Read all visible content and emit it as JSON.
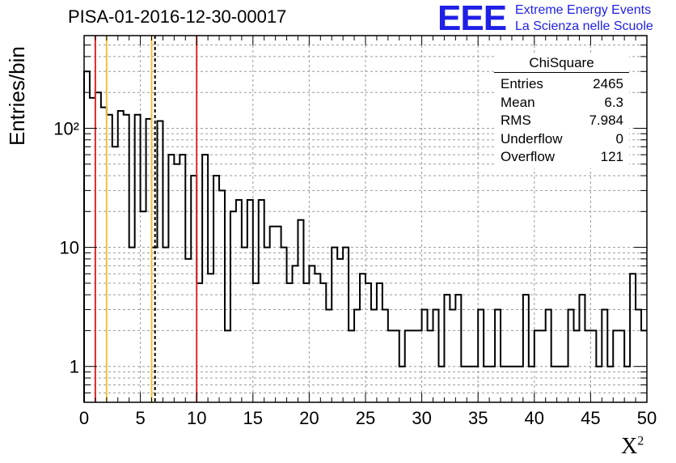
{
  "title": "PISA-01-2016-12-30-00017",
  "logo": {
    "mark": "EEE",
    "line1": "Extreme Energy Events",
    "line2": "La Scienza nelle Scuole",
    "color": "#1f1fe6"
  },
  "stats": {
    "title": "ChiSquare",
    "rows": [
      {
        "key": "Entries",
        "value": "2465"
      },
      {
        "key": "Mean",
        "value": "6.3"
      },
      {
        "key": "RMS",
        "value": "7.984"
      },
      {
        "key": "Underflow",
        "value": "0"
      },
      {
        "key": "Overflow",
        "value": "121"
      }
    ]
  },
  "chart_data": {
    "type": "histogram",
    "ylabel": "Entries/bin",
    "xlabel": "X",
    "xlabel_superscript": "2",
    "xlim": [
      0,
      50
    ],
    "ylim": [
      0.5,
      600
    ],
    "yscale": "log",
    "grid": true,
    "bin_width": 0.5,
    "x_ticks": [
      0,
      5,
      10,
      15,
      20,
      25,
      30,
      35,
      40,
      45,
      50
    ],
    "y_ticks": [
      {
        "value": 1,
        "label": "1"
      },
      {
        "value": 10,
        "label": "10"
      },
      {
        "value": 100,
        "label": "10²"
      }
    ],
    "values": [
      300,
      180,
      200,
      150,
      130,
      70,
      140,
      130,
      10,
      130,
      20,
      120,
      10,
      115,
      10,
      60,
      50,
      60,
      8,
      40,
      5,
      60,
      6,
      40,
      30,
      2,
      20,
      25,
      10,
      25,
      5,
      25,
      10,
      15,
      15,
      10,
      5,
      7,
      17,
      5,
      7,
      6,
      5,
      3,
      10,
      8,
      10,
      2,
      3,
      6,
      5,
      3,
      5,
      3,
      2,
      2,
      1,
      2,
      2,
      2,
      3,
      2,
      3,
      1,
      4,
      3,
      4,
      1,
      1,
      1,
      3,
      1,
      1,
      3,
      1,
      1,
      1,
      1,
      4,
      1,
      2,
      2,
      3,
      1,
      1,
      1,
      3,
      2,
      4,
      2,
      2,
      1,
      3,
      1,
      2,
      2,
      1,
      6,
      3,
      2
    ],
    "vertical_lines": [
      {
        "x": 1,
        "color": "#e0282a",
        "style": "solid"
      },
      {
        "x": 2,
        "color": "#f3c13a",
        "style": "solid"
      },
      {
        "x": 6,
        "color": "#f3c13a",
        "style": "solid"
      },
      {
        "x": 6.3,
        "color": "#000000",
        "style": "dashed"
      },
      {
        "x": 10,
        "color": "#e0282a",
        "style": "solid"
      }
    ]
  }
}
